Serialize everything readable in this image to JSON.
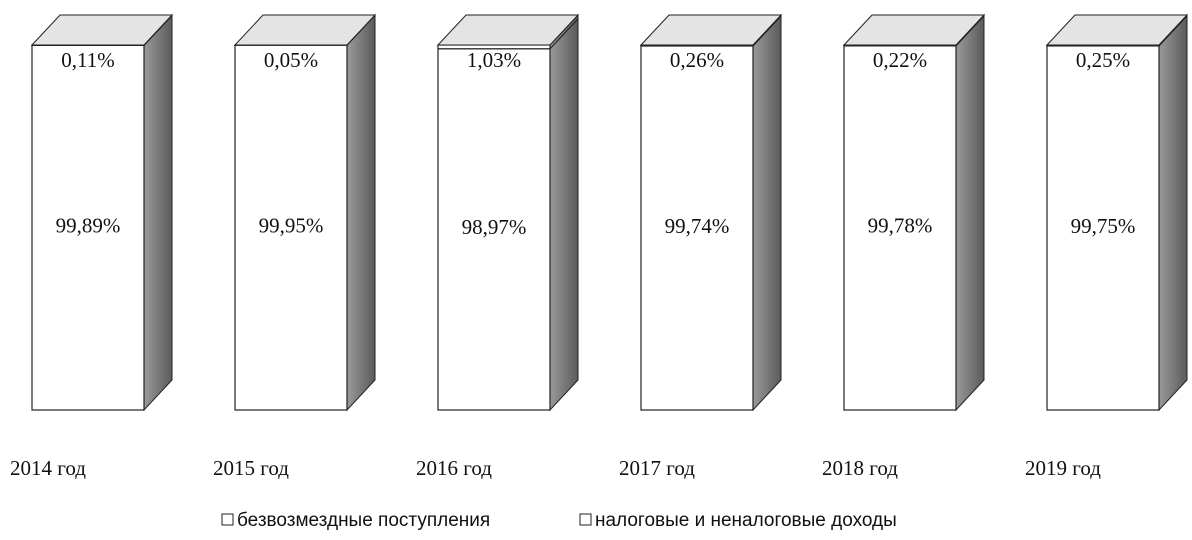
{
  "chart_data": {
    "type": "bar",
    "stacked": true,
    "categories": [
      "2014 год",
      "2015 год",
      "2016 год",
      "2017 год",
      "2018 год",
      "2019 год"
    ],
    "series": [
      {
        "name": "безвозмездные поступления",
        "color": "#ffffff",
        "values": [
          99.89,
          99.95,
          98.97,
          99.74,
          99.78,
          99.75
        ],
        "value_labels": [
          "99,89%",
          "99,95%",
          "98,97%",
          "99,74%",
          "99,78%",
          "99,75%"
        ]
      },
      {
        "name": "налоговые и неналоговые доходы",
        "color": "#ffffff",
        "values": [
          0.11,
          0.05,
          1.03,
          0.26,
          0.22,
          0.25
        ],
        "value_labels": [
          "0,11%",
          "0,05%",
          "1,03%",
          "0,26%",
          "0,22%",
          "0,25%"
        ]
      }
    ],
    "ylim": [
      0,
      100
    ]
  }
}
